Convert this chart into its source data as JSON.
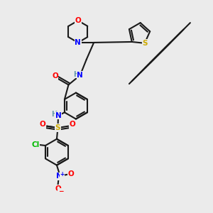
{
  "background_color": "#ebebeb",
  "figsize": [
    3.0,
    3.0
  ],
  "dpi": 100,
  "colors": {
    "C": "#1a1a1a",
    "N": "#0000ff",
    "O": "#ff0000",
    "S": "#ccaa00",
    "Cl": "#00bb00",
    "H": "#6699aa",
    "bond": "#1a1a1a"
  }
}
